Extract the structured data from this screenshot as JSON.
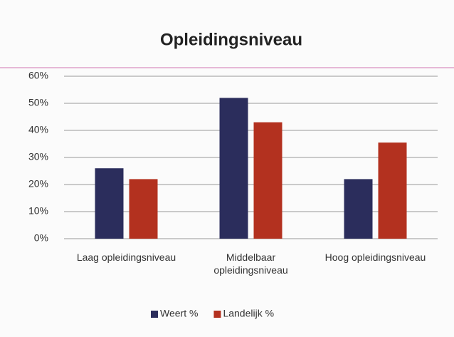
{
  "chart_data": {
    "type": "bar",
    "title": "Opleidingsniveau",
    "categories": [
      "Laag opleidingsniveau",
      "Middelbaar opleidingsniveau",
      "Hoog opleidingsniveau"
    ],
    "series": [
      {
        "name": "Weert %",
        "color": "#2b2d5c",
        "values": [
          26,
          52,
          22
        ]
      },
      {
        "name": "Landelijk %",
        "color": "#b3311f",
        "values": [
          22,
          43,
          35.5
        ]
      }
    ],
    "ylim": [
      0,
      60
    ],
    "yticks": [
      {
        "value": 0,
        "label": "0%"
      },
      {
        "value": 10,
        "label": "10%"
      },
      {
        "value": 20,
        "label": "20%"
      },
      {
        "value": 30,
        "label": "30%"
      },
      {
        "value": 40,
        "label": "40%"
      },
      {
        "value": 50,
        "label": "50%"
      },
      {
        "value": 60,
        "label": "60%"
      }
    ],
    "grid": true,
    "legend": "bottom"
  }
}
